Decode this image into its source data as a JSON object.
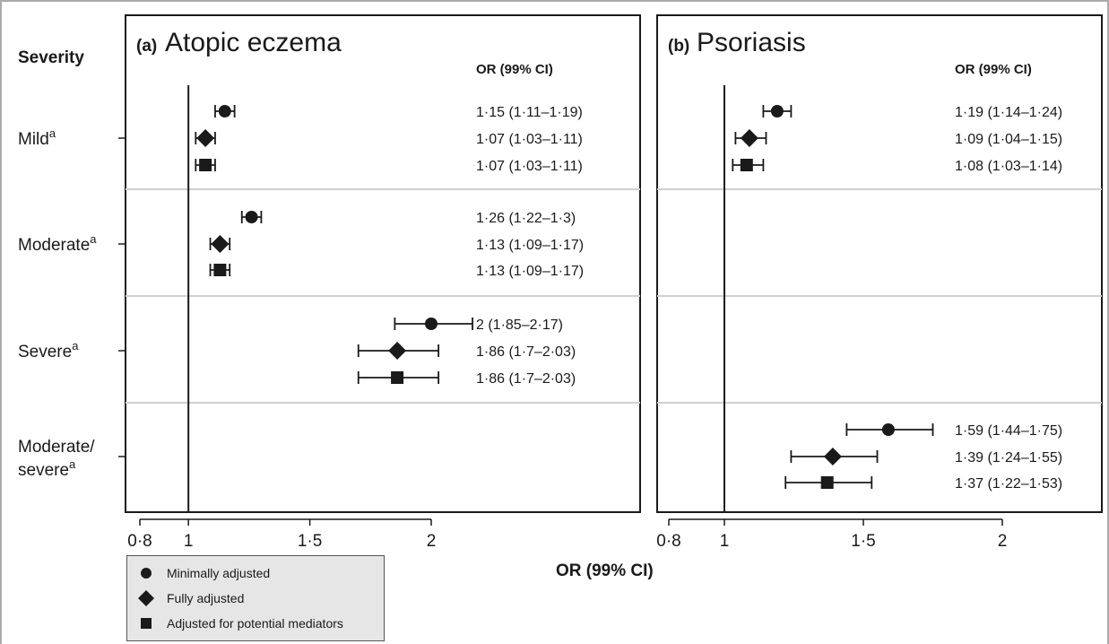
{
  "chart_data": {
    "type": "forest",
    "row_header": "Severity",
    "y_groups": [
      {
        "label": "Mild",
        "superscript": "a"
      },
      {
        "label": "Moderate",
        "superscript": "a"
      },
      {
        "label": "Severe",
        "superscript": "a"
      },
      {
        "label": "Moderate/\nsevere",
        "label_lines": [
          "Moderate/",
          "severe"
        ],
        "superscript": "a"
      }
    ],
    "series": [
      {
        "name": "Minimally adjusted",
        "marker": "circle"
      },
      {
        "name": "Fully adjusted",
        "marker": "diamond"
      },
      {
        "name": "Adjusted for potential mediators",
        "marker": "square"
      }
    ],
    "xlabel": "OR (99% CI)",
    "xticks": [
      0.8,
      1,
      1.5,
      2
    ],
    "xtick_labels": [
      "0·8",
      "1",
      "1·5",
      "2"
    ],
    "reference_line": 1,
    "panels": [
      {
        "title_tag": "(a)",
        "title": "Atopic eczema",
        "column_header": "OR (99% CI)",
        "xlim": [
          0.77,
          2.5
        ],
        "rows": [
          {
            "group": 0,
            "series": 0,
            "or": 1.15,
            "lo": 1.11,
            "hi": 1.19,
            "label": "1·15 (1·11–1·19)"
          },
          {
            "group": 0,
            "series": 1,
            "or": 1.07,
            "lo": 1.03,
            "hi": 1.11,
            "label": "1·07 (1·03–1·11)"
          },
          {
            "group": 0,
            "series": 2,
            "or": 1.07,
            "lo": 1.03,
            "hi": 1.11,
            "label": "1·07 (1·03–1·11)"
          },
          {
            "group": 1,
            "series": 0,
            "or": 1.26,
            "lo": 1.22,
            "hi": 1.3,
            "label": "1·26 (1·22–1·3)"
          },
          {
            "group": 1,
            "series": 1,
            "or": 1.13,
            "lo": 1.09,
            "hi": 1.17,
            "label": "1·13 (1·09–1·17)"
          },
          {
            "group": 1,
            "series": 2,
            "or": 1.13,
            "lo": 1.09,
            "hi": 1.17,
            "label": "1·13 (1·09–1·17)"
          },
          {
            "group": 2,
            "series": 0,
            "or": 2.0,
            "lo": 1.85,
            "hi": 2.17,
            "label": "2 (1·85–2·17)"
          },
          {
            "group": 2,
            "series": 1,
            "or": 1.86,
            "lo": 1.7,
            "hi": 2.03,
            "label": "1·86 (1·7–2·03)"
          },
          {
            "group": 2,
            "series": 2,
            "or": 1.86,
            "lo": 1.7,
            "hi": 2.03,
            "label": "1·86 (1·7–2·03)"
          }
        ]
      },
      {
        "title_tag": "(b)",
        "title": "Psoriasis",
        "column_header": "OR (99% CI)",
        "xlim": [
          0.77,
          2.5
        ],
        "rows": [
          {
            "group": 0,
            "series": 0,
            "or": 1.19,
            "lo": 1.14,
            "hi": 1.24,
            "label": "1·19 (1·14–1·24)"
          },
          {
            "group": 0,
            "series": 1,
            "or": 1.09,
            "lo": 1.04,
            "hi": 1.15,
            "label": "1·09 (1·04–1·15)"
          },
          {
            "group": 0,
            "series": 2,
            "or": 1.08,
            "lo": 1.03,
            "hi": 1.14,
            "label": "1·08 (1·03–1·14)"
          },
          {
            "group": 3,
            "series": 0,
            "or": 1.59,
            "lo": 1.44,
            "hi": 1.75,
            "label": "1·59 (1·44–1·75)"
          },
          {
            "group": 3,
            "series": 1,
            "or": 1.39,
            "lo": 1.24,
            "hi": 1.55,
            "label": "1·39 (1·24–1·55)"
          },
          {
            "group": 3,
            "series": 2,
            "or": 1.37,
            "lo": 1.22,
            "hi": 1.53,
            "label": "1·37 (1·22–1·53)"
          }
        ]
      }
    ],
    "colors": {
      "marker": "#1a1a1a",
      "divider": "#d0d0d0",
      "legend_bg": "#e6e6e6"
    }
  }
}
